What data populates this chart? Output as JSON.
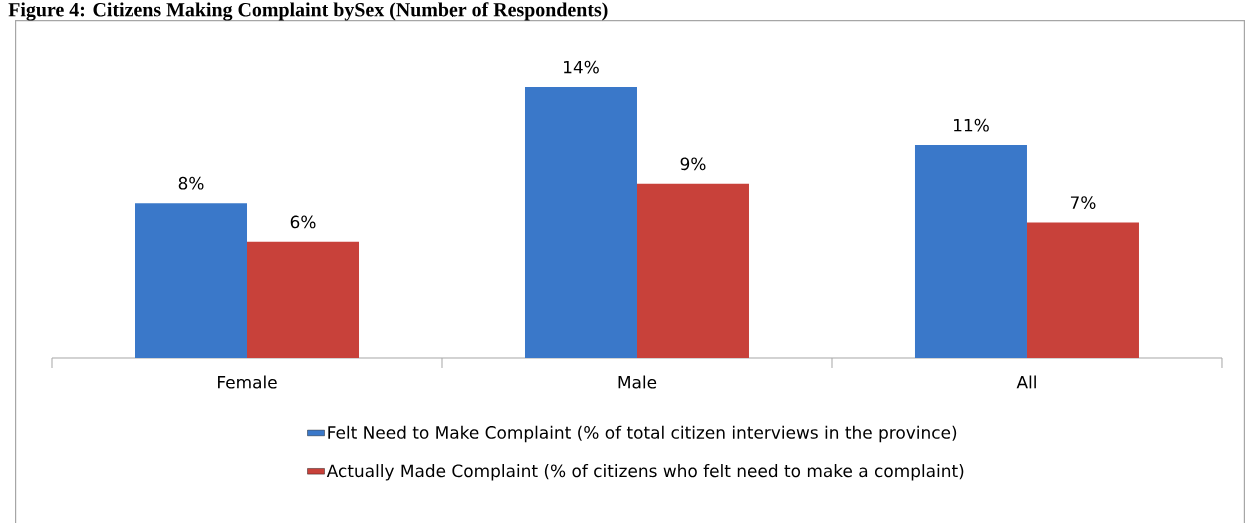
{
  "chart_data": {
    "type": "bar",
    "title": "Figure 4: Citizens Making Complaint bySex (Number of Respondents)",
    "categories": [
      "Female",
      "Male",
      "All"
    ],
    "series": [
      {
        "name": "Felt Need to Make Complaint (% of total citizen interviews in the province)",
        "color": "#3a78c9",
        "values": [
          8,
          14,
          11
        ],
        "value_labels": [
          "8%",
          "14%",
          "11%"
        ]
      },
      {
        "name": "Actually Made Complaint (% of citizens who felt need to make a complaint)",
        "color": "#c8413a",
        "values": [
          6,
          9,
          7
        ],
        "value_labels": [
          "6%",
          "9%",
          "7%"
        ]
      }
    ],
    "legend": "bottom"
  }
}
